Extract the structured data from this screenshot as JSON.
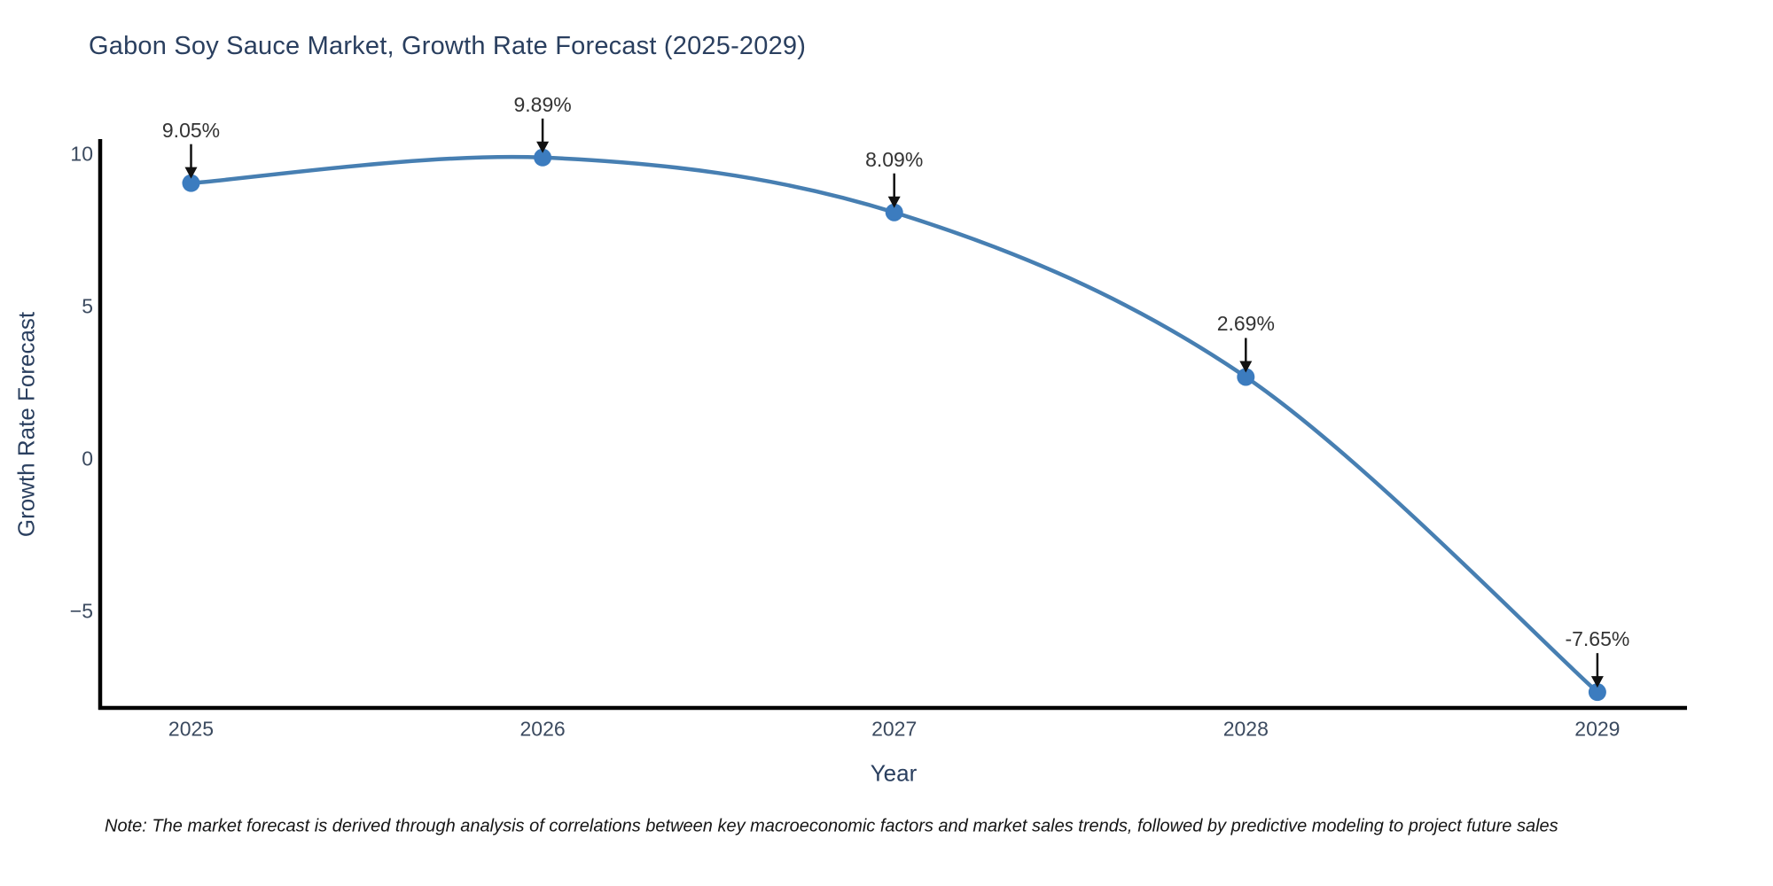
{
  "chart_data": {
    "type": "line",
    "title": "Gabon Soy Sauce Market, Growth Rate Forecast (2025-2029)",
    "xlabel": "Year",
    "ylabel": "Growth Rate Forecast",
    "x_tick_labels": [
      "2025",
      "2026",
      "2027",
      "2028",
      "2029"
    ],
    "x": [
      2025,
      2026,
      2027,
      2028,
      2029
    ],
    "values": [
      9.05,
      9.89,
      8.09,
      2.69,
      -7.65
    ],
    "point_labels": [
      "9.05%",
      "9.89%",
      "8.09%",
      "2.69%",
      "-7.65%"
    ],
    "y_tick_labels": [
      "10",
      "5",
      "0",
      "−5"
    ],
    "y_tick_values": [
      10,
      5,
      0,
      -5
    ],
    "ylim": [
      -8.3,
      10.5
    ],
    "grid": false,
    "legend": false,
    "line_color": "#477fb2",
    "marker_color": "#3c7cbf",
    "axis_color": "#000000",
    "arrow_color": "#111111",
    "note": "Note: The market forecast is derived through analysis of correlations between key macroeconomic factors and market sales trends, followed by predictive modeling to project future sales"
  }
}
